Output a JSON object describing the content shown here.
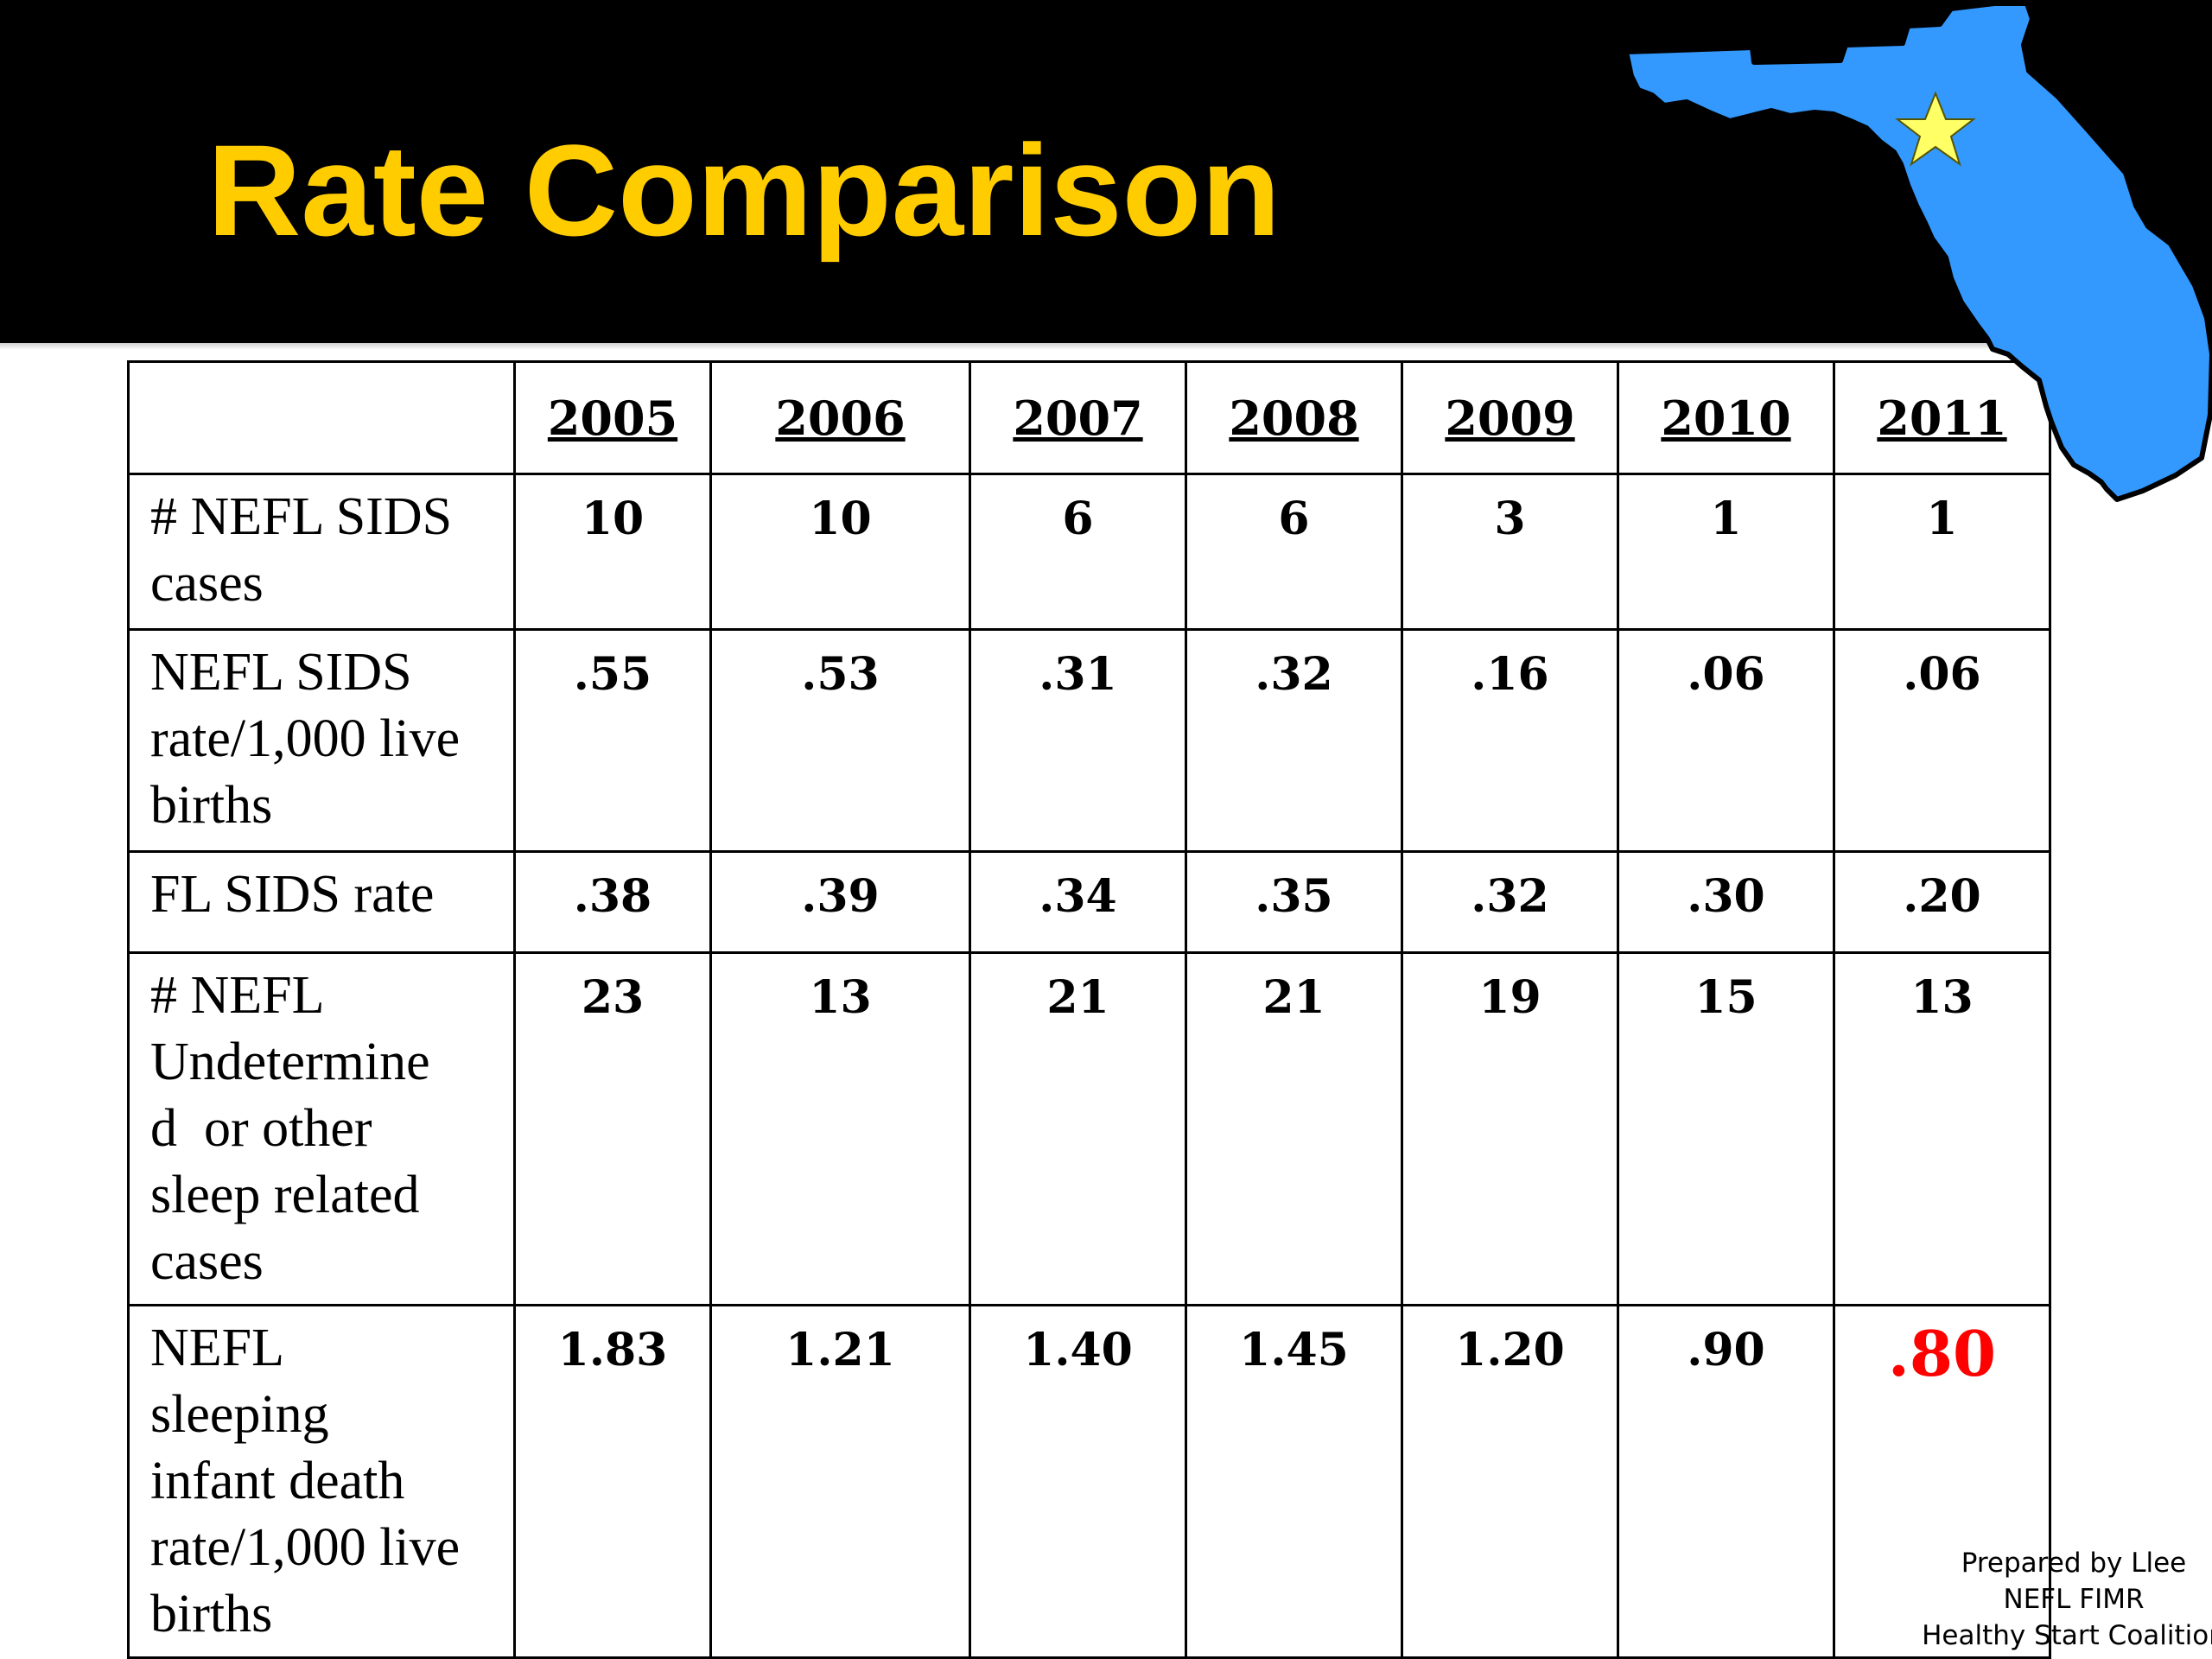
{
  "slide": {
    "title": "Rate Comparison",
    "title_color": "#FFCC00",
    "header_color": "#000000",
    "map_color": "#3399FF",
    "star_color": "#FFFF66",
    "map_icon": "florida-map-icon",
    "star_icon": "star-icon"
  },
  "table": {
    "years": [
      "2005",
      "2006",
      "2007",
      "2008",
      "2009",
      "2010",
      "2011"
    ],
    "rows": [
      {
        "label_lines": [
          "# NEFL SIDS",
          "cases"
        ],
        "values": [
          "10",
          "10",
          "6",
          "6",
          "3",
          "1",
          "1"
        ]
      },
      {
        "label_lines": [
          "NEFL SIDS",
          "rate/1,000 live",
          "births"
        ],
        "values": [
          ".55",
          ".53",
          ".31",
          ".32",
          ".16",
          ".06",
          ".06"
        ]
      },
      {
        "label_lines": [
          "FL SIDS rate"
        ],
        "values": [
          ".38",
          ".39",
          ".34",
          ".35",
          ".32",
          ".30",
          ".20"
        ]
      },
      {
        "label_lines": [
          "# NEFL",
          "Undetermine",
          "d  or other",
          "sleep related",
          "cases"
        ],
        "values": [
          "23",
          "13",
          "21",
          "21",
          "19",
          "15",
          "13"
        ]
      },
      {
        "label_lines": [
          "NEFL",
          "sleeping",
          "infant death",
          "rate/1,000 live",
          "births"
        ],
        "values": [
          "1.83",
          "1.21",
          "1.40",
          "1.45",
          "1.20",
          ".90",
          ".80"
        ],
        "highlight_last": true,
        "highlight_color": "#FF0000"
      }
    ]
  },
  "credit": {
    "lines": [
      "Prepared by Llee",
      "NEFL FIMR",
      "Healthy Start Coalition"
    ]
  }
}
